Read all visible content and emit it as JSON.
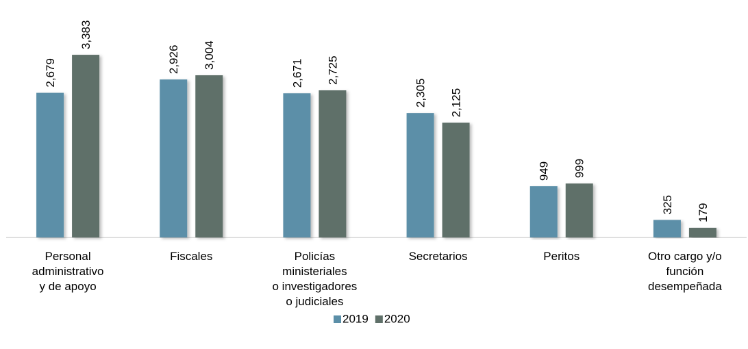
{
  "chart_data": {
    "type": "bar",
    "categories": [
      "Personal\nadministrativo\ny de apoyo",
      "Fiscales",
      "Policías\nministeriales\no investigadores\no judiciales",
      "Secretarios",
      "Peritos",
      "Otro cargo y/o\nfunción\ndesempeñada"
    ],
    "series": [
      {
        "name": "2019",
        "color": "#5b8fa8",
        "values": [
          2679,
          2926,
          2671,
          2305,
          949,
          325
        ],
        "value_labels": [
          "2,679",
          "2,926",
          "2,671",
          "2,305",
          "949",
          "325"
        ]
      },
      {
        "name": "2020",
        "color": "#5f7069",
        "values": [
          3383,
          3004,
          2725,
          2125,
          999,
          179
        ],
        "value_labels": [
          "3,383",
          "3,004",
          "2,725",
          "2,125",
          "999",
          "179"
        ]
      }
    ],
    "ylim": [
      0,
      4000
    ],
    "legend": "bottom"
  }
}
